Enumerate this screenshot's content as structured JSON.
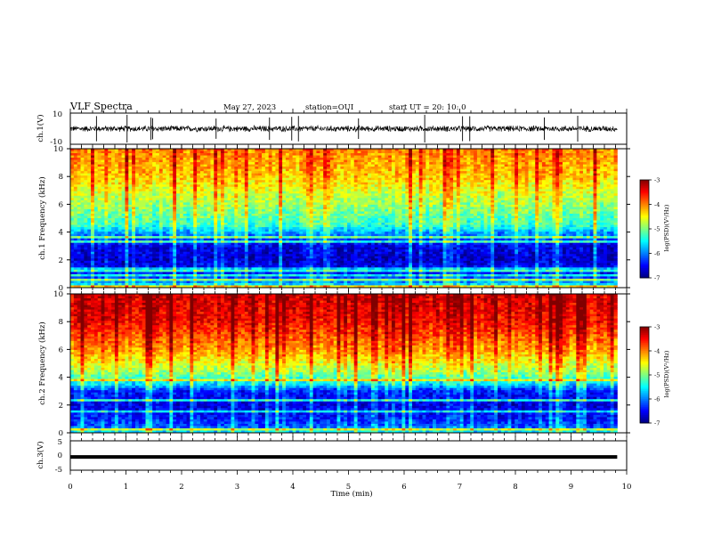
{
  "header": {
    "title": "VLF Spectra",
    "date": "May 27, 2023",
    "station": "station=OUI",
    "start": "start UT =  20: 10: 0"
  },
  "chart_data": [
    {
      "type": "line",
      "panel": "ch1-waveform",
      "ylabel": "ch.1(V)",
      "ylim": [
        -10,
        10
      ],
      "yticks": [
        "10",
        "-10"
      ],
      "x_range_min": [
        0,
        9.83
      ],
      "baseline": 0,
      "noise_amplitude": 2.2,
      "impulses_min": [
        0.47,
        1.02,
        1.45,
        1.48,
        2.62,
        3.58,
        3.98,
        4.1,
        5.18,
        6.37,
        7.05,
        7.18,
        8.52,
        9.12
      ]
    },
    {
      "type": "heatmap",
      "panel": "ch1-spectrogram",
      "ylabel": "ch.1 Frequency (kHz)",
      "ylim": [
        0,
        10
      ],
      "yticks": [
        "0",
        "2",
        "4",
        "6",
        "8",
        "10"
      ],
      "x_range_min": [
        0,
        9.83
      ],
      "colorbar": {
        "label": "log(PSD)(V²/Hz)",
        "ticks": [
          "-3",
          "-4",
          "-5",
          "-6",
          "-7"
        ],
        "range": [
          -7,
          -3
        ]
      },
      "profile_khz": [
        0,
        0.5,
        1,
        2,
        3,
        3.8,
        4.5,
        6,
        8,
        10
      ],
      "profile_logpsd": [
        -5.2,
        -6.1,
        -6.4,
        -6.7,
        -6.6,
        -6.0,
        -5.3,
        -4.9,
        -4.3,
        -4.0
      ]
    },
    {
      "type": "heatmap",
      "panel": "ch2-spectrogram",
      "ylabel": "ch.2 Frequency (kHz)",
      "ylim": [
        0,
        10
      ],
      "yticks": [
        "0",
        "2",
        "4",
        "6",
        "8",
        "10"
      ],
      "x_range_min": [
        0,
        9.83
      ],
      "colorbar": {
        "label": "log(PSD)(V²/Hz)",
        "ticks": [
          "-3",
          "-4",
          "-5",
          "-6",
          "-7"
        ],
        "range": [
          -7,
          -3
        ]
      },
      "profile_khz": [
        0,
        0.5,
        1,
        2,
        3,
        3.5,
        4.5,
        6,
        8,
        10
      ],
      "profile_logpsd": [
        -5.5,
        -6.2,
        -6.4,
        -6.6,
        -6.4,
        -5.6,
        -4.8,
        -4.1,
        -3.5,
        -3.3
      ]
    },
    {
      "type": "line",
      "panel": "ch3-waveform",
      "ylabel": "ch.3(V)",
      "ylim": [
        -5,
        5
      ],
      "yticks": [
        "5",
        "0",
        "-5"
      ],
      "x_range_min": [
        0,
        9.83
      ],
      "value": -0.5,
      "xlabel": "Time (min)",
      "xlim": [
        0,
        10
      ],
      "xticks": [
        "0",
        "1",
        "2",
        "3",
        "4",
        "5",
        "6",
        "7",
        "8",
        "9",
        "10"
      ]
    }
  ]
}
